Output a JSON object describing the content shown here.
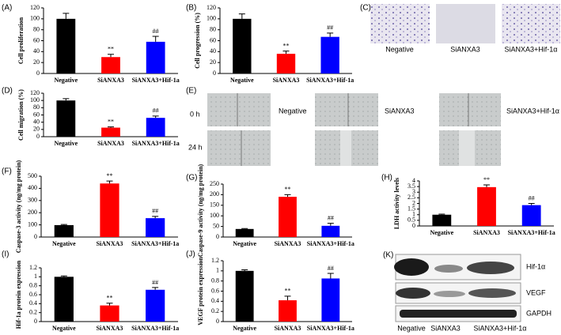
{
  "chart_data": [
    {
      "type": "bar",
      "panel": "(A)",
      "y_label": "Cell proliferation",
      "categories": [
        "Negative",
        "SiANXA3",
        "SiANXA3+Hif-1a"
      ],
      "values": [
        100,
        30,
        58
      ],
      "errors": [
        10,
        5,
        10
      ],
      "marks": [
        null,
        "**",
        "##"
      ],
      "colors": [
        "#000000",
        "#ff0000",
        "#0000ff"
      ],
      "ylim": [
        0,
        120
      ],
      "yticks": [
        0,
        20,
        40,
        60,
        80,
        100,
        120
      ]
    },
    {
      "type": "bar",
      "panel": "(B)",
      "y_label": "Cell progression (%)",
      "categories": [
        "Negative",
        "SiANXA3",
        "SiANXA3+Hif-1a"
      ],
      "values": [
        100,
        36,
        67
      ],
      "errors": [
        9,
        5,
        7
      ],
      "marks": [
        null,
        "**",
        "##"
      ],
      "colors": [
        "#000000",
        "#ff0000",
        "#0000ff"
      ],
      "ylim": [
        0,
        120
      ],
      "yticks": [
        0,
        20,
        40,
        60,
        80,
        100,
        120
      ]
    },
    {
      "type": "bar",
      "panel": "(D)",
      "y_label": "Cell migration (%)",
      "categories": [
        "Negative",
        "SiANXA3",
        "SiANXA3+Hif-1a"
      ],
      "values": [
        100,
        25,
        52
      ],
      "errors": [
        5,
        2,
        5
      ],
      "marks": [
        null,
        "**",
        "##"
      ],
      "colors": [
        "#000000",
        "#ff0000",
        "#0000ff"
      ],
      "ylim": [
        0,
        120
      ],
      "yticks": [
        0,
        20,
        40,
        60,
        80,
        100,
        120
      ]
    },
    {
      "type": "bar",
      "panel": "(F)",
      "y_label": "Caspase-3 activity (ng/mg protein)",
      "categories": [
        "Negative",
        "SiANXA3",
        "SiANXA3+Hif-1a"
      ],
      "values": [
        98,
        440,
        155
      ],
      "errors": [
        5,
        20,
        15
      ],
      "marks": [
        null,
        "**",
        "##"
      ],
      "colors": [
        "#000000",
        "#ff0000",
        "#0000ff"
      ],
      "ylim": [
        0,
        500
      ],
      "yticks": [
        0,
        100,
        200,
        300,
        400,
        500
      ]
    },
    {
      "type": "bar",
      "panel": "(G)",
      "y_label": "Caspase-9 activity (ng/mg protein)",
      "categories": [
        "Negative",
        "SiANXA3",
        "SiANXA3+Hif-1a"
      ],
      "values": [
        38,
        190,
        53
      ],
      "errors": [
        2,
        10,
        12
      ],
      "marks": [
        null,
        "**",
        "##"
      ],
      "colors": [
        "#000000",
        "#ff0000",
        "#0000ff"
      ],
      "ylim": [
        0,
        250
      ],
      "yticks": [
        0,
        50,
        100,
        150,
        200,
        250
      ]
    },
    {
      "type": "bar",
      "panel": "(H)",
      "y_label": "LDH activity levels",
      "categories": [
        "Negative",
        "SiANXA3",
        "SiANXA3+Hif-1a"
      ],
      "values": [
        1,
        3.45,
        1.85
      ],
      "errors": [
        0.05,
        0.2,
        0.15
      ],
      "marks": [
        null,
        "**",
        "##"
      ],
      "colors": [
        "#000000",
        "#ff0000",
        "#0000ff"
      ],
      "ylim": [
        0,
        4
      ],
      "yticks": [
        0,
        0.5,
        1,
        1.5,
        2,
        2.5,
        3,
        3.5,
        4
      ]
    },
    {
      "type": "bar",
      "panel": "(I)",
      "y_label": "Hif-1a protein expression",
      "categories": [
        "Negative",
        "SiANXA3",
        "SiANXA3+Hif-1a"
      ],
      "values": [
        1,
        0.36,
        0.71
      ],
      "errors": [
        0.02,
        0.05,
        0.05
      ],
      "marks": [
        null,
        "**",
        "##"
      ],
      "colors": [
        "#000000",
        "#ff0000",
        "#0000ff"
      ],
      "ylim": [
        0,
        1.2
      ],
      "yticks": [
        0,
        0.2,
        0.4,
        0.6,
        0.8,
        1,
        1.2
      ]
    },
    {
      "type": "bar",
      "panel": "(J)",
      "y_label": "VEGF protein expression",
      "categories": [
        "Negative",
        "SiANXA3",
        "SiANXA3+Hif-1a"
      ],
      "values": [
        1,
        0.42,
        0.85
      ],
      "errors": [
        0.02,
        0.08,
        0.1
      ],
      "marks": [
        null,
        "**",
        "##"
      ],
      "colors": [
        "#000000",
        "#ff0000",
        "#0000ff"
      ],
      "ylim": [
        0,
        1.2
      ],
      "yticks": [
        0,
        0.2,
        0.4,
        0.6,
        0.8,
        1,
        1.2
      ]
    }
  ],
  "image_panels": {
    "C": {
      "panel": "(C)",
      "captions": [
        "Negative",
        "SiANXA3",
        "SiANXA3+Hif-1α"
      ]
    },
    "E": {
      "panel": "(E)",
      "rows": [
        "0 h",
        "24 h"
      ],
      "captions": [
        "Negative",
        "SiANXA3",
        "SiANXA3+Hif-1α"
      ]
    },
    "K": {
      "panel": "(K)",
      "rows": [
        "Hif-1α",
        "VEGF",
        "GAPDH"
      ],
      "captions": [
        "Negative",
        "SiANXA3",
        "SiANXA3+Hif-1α"
      ]
    }
  }
}
